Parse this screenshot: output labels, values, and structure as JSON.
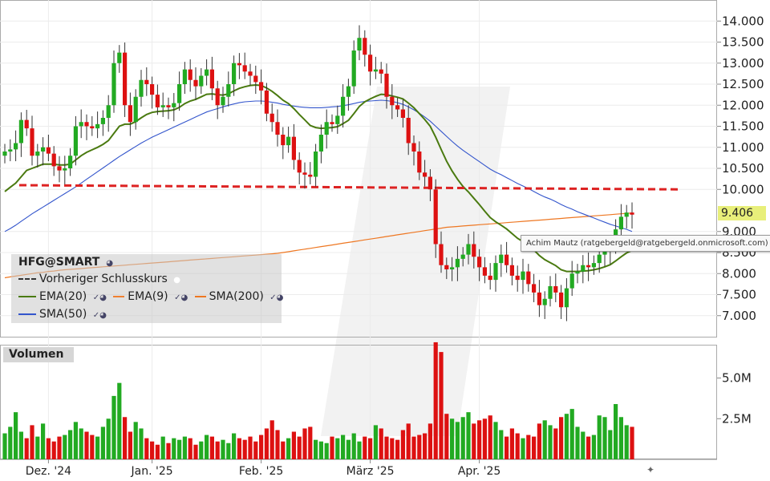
{
  "chart_data": {
    "type": "candlestick",
    "symbol": "HFG@SMART",
    "colors": {
      "up": "#22aa22",
      "down": "#dd1111",
      "ema20": "#4a7a10",
      "ema9": "#f08030",
      "sma200": "#ee7722",
      "sma50": "#3355cc",
      "prev_close": "#dd2222",
      "last_price_tag": "#e8ef7a"
    },
    "legend": {
      "symbol": "HFG@SMART",
      "items": [
        "Vorheriger Schlusskurs",
        "EMA(20)",
        "EMA(9)",
        "SMA(200)",
        "SMA(50)"
      ]
    },
    "x_labels": [
      "Dez. '24",
      "Jan. '25",
      "Feb. '25",
      "März '25",
      "Apr. '25"
    ],
    "x_label_index": [
      8,
      27,
      47,
      67,
      87
    ],
    "price_axis": {
      "ylim": [
        6.5,
        14.5
      ],
      "ticks": [
        "14.000",
        "13.500",
        "13.000",
        "12.500",
        "12.000",
        "11.500",
        "11.000",
        "10.500",
        "10.000",
        "9.000",
        "8.500",
        "8.000",
        "7.500",
        "7.000"
      ],
      "tick_values": [
        14.0,
        13.5,
        13.0,
        12.5,
        12.0,
        11.5,
        11.0,
        10.5,
        10.0,
        9.0,
        8.5,
        8.0,
        7.5,
        7.0
      ]
    },
    "last_price": "9.406",
    "last_price_value": 9.406,
    "prev_close": 10.1,
    "volume_panel": {
      "label": "Volumen",
      "ticks": [
        "5.0M",
        "2.5M"
      ],
      "tick_values": [
        5000000,
        2500000
      ],
      "ylim": [
        0,
        7000000
      ]
    },
    "tooltip": "Achim  Mautz (ratgebergeld@ratgebergeld.onmicrosoft.com)",
    "close": [
      10.9,
      10.95,
      11.1,
      11.65,
      11.45,
      10.8,
      10.9,
      11.0,
      10.85,
      10.55,
      10.45,
      10.5,
      10.8,
      11.5,
      11.6,
      11.5,
      11.45,
      11.55,
      11.7,
      12.0,
      13.0,
      13.25,
      12.0,
      11.6,
      12.2,
      12.6,
      12.5,
      12.25,
      11.95,
      12.0,
      11.95,
      12.05,
      12.5,
      12.85,
      12.6,
      12.45,
      12.7,
      12.85,
      12.4,
      12.0,
      12.2,
      12.5,
      13.0,
      12.95,
      12.8,
      12.7,
      12.55,
      12.35,
      11.8,
      11.6,
      11.3,
      11.05,
      11.25,
      10.7,
      10.4,
      10.35,
      10.3,
      10.9,
      11.3,
      11.6,
      11.55,
      11.75,
      12.2,
      12.45,
      13.3,
      13.6,
      13.2,
      12.8,
      12.85,
      12.75,
      12.2,
      12.0,
      11.9,
      11.7,
      11.1,
      10.9,
      10.4,
      10.3,
      10.0,
      8.7,
      8.2,
      8.1,
      8.15,
      8.35,
      8.45,
      8.7,
      8.4,
      8.15,
      7.95,
      7.85,
      8.25,
      8.45,
      8.2,
      7.95,
      7.85,
      8.05,
      7.75,
      7.55,
      7.25,
      7.4,
      7.7,
      7.55,
      7.2,
      7.65,
      8.0,
      8.05,
      8.2,
      8.15,
      8.25,
      8.45,
      8.55,
      8.65,
      9.05,
      9.35,
      9.45,
      9.4
    ],
    "volume": [
      1.6,
      2.0,
      2.9,
      1.7,
      1.3,
      2.1,
      1.4,
      2.2,
      1.3,
      1.1,
      1.4,
      1.5,
      1.8,
      2.3,
      1.9,
      1.7,
      1.5,
      1.4,
      2.0,
      2.5,
      3.9,
      4.7,
      2.6,
      1.7,
      2.3,
      1.9,
      1.3,
      1.1,
      0.9,
      1.4,
      1.0,
      1.3,
      1.2,
      1.4,
      1.3,
      0.9,
      1.1,
      1.5,
      1.4,
      1.1,
      1.2,
      1.0,
      1.6,
      1.3,
      1.2,
      1.4,
      1.1,
      1.5,
      1.9,
      2.4,
      1.8,
      1.1,
      1.3,
      1.7,
      1.4,
      1.9,
      2.0,
      1.2,
      1.1,
      1.0,
      1.4,
      1.3,
      1.5,
      1.2,
      1.6,
      1.1,
      1.4,
      1.3,
      2.1,
      1.9,
      1.4,
      1.3,
      1.2,
      1.8,
      2.2,
      1.4,
      1.5,
      1.6,
      2.2,
      7.2,
      6.6,
      2.8,
      2.5,
      2.3,
      2.6,
      2.9,
      2.2,
      2.4,
      2.5,
      2.7,
      2.3,
      1.8,
      1.4,
      1.9,
      1.6,
      1.3,
      1.5,
      1.4,
      2.2,
      2.4,
      2.1,
      1.9,
      2.6,
      2.8,
      3.1,
      2.0,
      1.7,
      1.4,
      1.5,
      2.7,
      2.6,
      1.8,
      3.4,
      2.6,
      2.1,
      2.0
    ],
    "ema20": [
      9.95,
      10.05,
      10.15,
      10.3,
      10.45,
      10.5,
      10.55,
      10.6,
      10.6,
      10.6,
      10.58,
      10.58,
      10.6,
      10.7,
      10.8,
      10.88,
      10.94,
      11.0,
      11.07,
      11.16,
      11.33,
      11.5,
      11.55,
      11.55,
      11.61,
      11.7,
      11.78,
      11.83,
      11.85,
      11.86,
      11.87,
      11.89,
      11.95,
      12.04,
      12.1,
      12.14,
      12.2,
      12.26,
      12.27,
      12.25,
      12.24,
      12.27,
      12.34,
      12.4,
      12.44,
      12.47,
      12.48,
      12.47,
      12.41,
      12.33,
      12.23,
      12.12,
      12.04,
      11.92,
      11.78,
      11.65,
      11.52,
      11.47,
      11.45,
      11.46,
      11.47,
      11.49,
      11.56,
      11.64,
      11.8,
      11.97,
      12.08,
      12.15,
      12.21,
      12.26,
      12.25,
      12.22,
      12.19,
      12.15,
      12.05,
      11.94,
      11.8,
      11.66,
      11.5,
      11.24,
      10.95,
      10.67,
      10.44,
      10.24,
      10.07,
      9.94,
      9.79,
      9.64,
      9.48,
      9.33,
      9.23,
      9.15,
      9.06,
      8.95,
      8.84,
      8.76,
      8.66,
      8.56,
      8.43,
      8.33,
      8.26,
      8.19,
      8.09,
      8.05,
      8.05,
      8.05,
      8.06,
      8.07,
      8.09,
      8.12,
      8.16,
      8.21,
      8.3,
      8.4,
      8.49,
      8.55
    ],
    "sma50": [
      9.0,
      9.07,
      9.15,
      9.24,
      9.33,
      9.42,
      9.5,
      9.58,
      9.66,
      9.74,
      9.82,
      9.9,
      9.98,
      10.06,
      10.15,
      10.24,
      10.33,
      10.42,
      10.51,
      10.6,
      10.69,
      10.78,
      10.86,
      10.94,
      11.02,
      11.1,
      11.17,
      11.24,
      11.3,
      11.36,
      11.42,
      11.48,
      11.54,
      11.6,
      11.66,
      11.72,
      11.78,
      11.84,
      11.88,
      11.92,
      11.96,
      12.0,
      12.03,
      12.06,
      12.08,
      12.09,
      12.1,
      12.1,
      12.09,
      12.07,
      12.05,
      12.02,
      12.0,
      11.98,
      11.96,
      11.95,
      11.94,
      11.94,
      11.94,
      11.95,
      11.96,
      11.97,
      11.99,
      12.01,
      12.04,
      12.07,
      12.09,
      12.1,
      12.11,
      12.12,
      12.11,
      12.09,
      12.06,
      12.02,
      11.96,
      11.89,
      11.81,
      11.72,
      11.62,
      11.5,
      11.38,
      11.26,
      11.14,
      11.03,
      10.93,
      10.84,
      10.75,
      10.66,
      10.57,
      10.48,
      10.41,
      10.35,
      10.28,
      10.21,
      10.14,
      10.08,
      10.02,
      9.95,
      9.88,
      9.82,
      9.77,
      9.71,
      9.64,
      9.58,
      9.53,
      9.47,
      9.42,
      9.37,
      9.32,
      9.27,
      9.22,
      9.17,
      9.13,
      9.09,
      9.05,
      9.0
    ],
    "sma200": [
      7.9,
      7.92,
      7.94,
      7.96,
      7.98,
      8.0,
      8.02,
      8.03,
      8.05,
      8.06,
      8.08,
      8.09,
      8.1,
      8.11,
      8.12,
      8.13,
      8.14,
      8.15,
      8.16,
      8.17,
      8.18,
      8.19,
      8.2,
      8.21,
      8.22,
      8.23,
      8.24,
      8.25,
      8.26,
      8.27,
      8.28,
      8.29,
      8.3,
      8.31,
      8.32,
      8.33,
      8.34,
      8.35,
      8.36,
      8.37,
      8.38,
      8.39,
      8.4,
      8.41,
      8.42,
      8.43,
      8.44,
      8.45,
      8.46,
      8.47,
      8.48,
      8.5,
      8.52,
      8.54,
      8.56,
      8.58,
      8.6,
      8.62,
      8.64,
      8.66,
      8.68,
      8.7,
      8.72,
      8.74,
      8.76,
      8.78,
      8.8,
      8.82,
      8.84,
      8.86,
      8.88,
      8.9,
      8.92,
      8.94,
      8.96,
      8.98,
      9.0,
      9.02,
      9.04,
      9.06,
      9.08,
      9.1,
      9.11,
      9.12,
      9.13,
      9.14,
      9.15,
      9.16,
      9.17,
      9.18,
      9.19,
      9.2,
      9.21,
      9.22,
      9.23,
      9.24,
      9.25,
      9.26,
      9.27,
      9.28,
      9.29,
      9.3,
      9.31,
      9.32,
      9.33,
      9.34,
      9.35,
      9.36,
      9.37,
      9.38,
      9.39,
      9.4,
      9.41,
      9.42,
      9.43,
      9.44
    ]
  }
}
